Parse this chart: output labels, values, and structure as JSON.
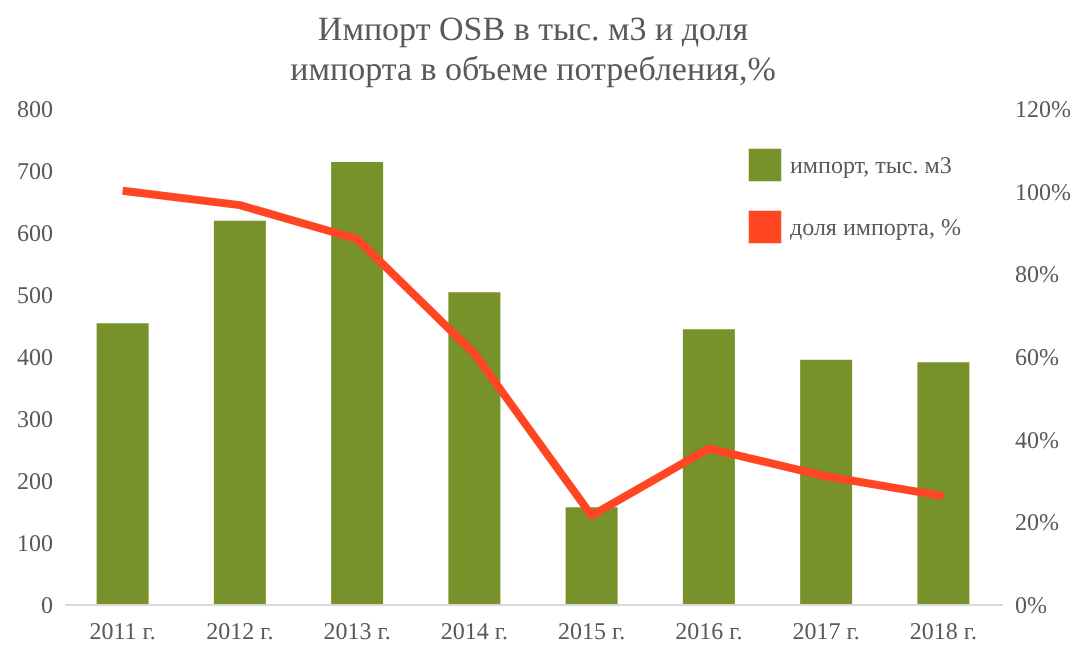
{
  "chart_data": {
    "type": "bar",
    "title": "Импорт OSB в тыс. м3 и доля импорта в объеме потребления,%",
    "categories": [
      "2011 г.",
      "2012 г.",
      "2013 г.",
      "2014 г.",
      "2015 г.",
      "2016 г.",
      "2017 г.",
      "2018 г."
    ],
    "series": [
      {
        "name": "импорт, тыс. м3",
        "color": "#77922a",
        "values": [
          453,
          618,
          713,
          503,
          156,
          443,
          394,
          390
        ]
      },
      {
        "name": "доля импорта, %",
        "color": "#ff4521",
        "type": "line",
        "axis": "y2",
        "values": [
          100,
          96.5,
          88.3,
          60.6,
          21.4,
          37.6,
          30.9,
          26.1
        ]
      }
    ],
    "ylim": [
      0,
      800
    ],
    "yticks": [
      0,
      100,
      200,
      300,
      400,
      500,
      600,
      700,
      800
    ],
    "y2lim": [
      0,
      120
    ],
    "y2ticks": [
      {
        "value": 0,
        "label": "0%"
      },
      {
        "value": 20,
        "label": "20%"
      },
      {
        "value": 40,
        "label": "40%"
      },
      {
        "value": 60,
        "label": "60%"
      },
      {
        "value": 80,
        "label": "80%"
      },
      {
        "value": 100,
        "label": "100%"
      },
      {
        "value": 120,
        "label": "120%"
      }
    ],
    "grid": false,
    "legend": "top right",
    "line_style": "solid",
    "marker": "none"
  }
}
